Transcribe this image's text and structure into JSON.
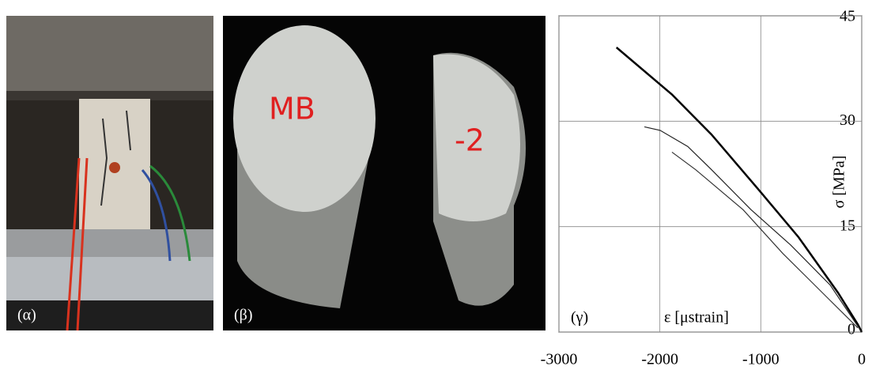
{
  "panels": [
    {
      "label": "(α)"
    },
    {
      "label": "(β)"
    }
  ],
  "chart_data": {
    "type": "line",
    "panel_label": "(γ)",
    "x_label": "ε [μstrain]",
    "y_label": "σ [MPa]",
    "xlim": [
      -3000,
      0
    ],
    "xticks": [
      -3000,
      -2000,
      -1000,
      0
    ],
    "ylim": [
      0,
      45
    ],
    "yticks": [
      0,
      15,
      30,
      45
    ],
    "grid": true,
    "series": [
      {
        "color": "#000000",
        "linewidth": 2.5,
        "x": [
          -2430,
          -1880,
          -1488,
          -1018,
          -626,
          -235,
          -39,
          0
        ],
        "values": [
          40.5,
          33.8,
          28.1,
          20.2,
          13.5,
          5.6,
          1.1,
          0
        ]
      },
      {
        "color": "#222222",
        "linewidth": 1.2,
        "x": [
          -2153,
          -1997,
          -1723,
          -1488,
          -1096,
          -705,
          -313,
          0
        ],
        "values": [
          29.2,
          28.7,
          26.4,
          23.1,
          17.4,
          12.4,
          6.7,
          0
        ]
      },
      {
        "color": "#333333",
        "linewidth": 1.2,
        "x": [
          -1880,
          -1645,
          -1175,
          -783,
          -313,
          -39
        ],
        "values": [
          25.6,
          23.1,
          17.4,
          11.2,
          4.5,
          0.6
        ]
      }
    ]
  }
}
